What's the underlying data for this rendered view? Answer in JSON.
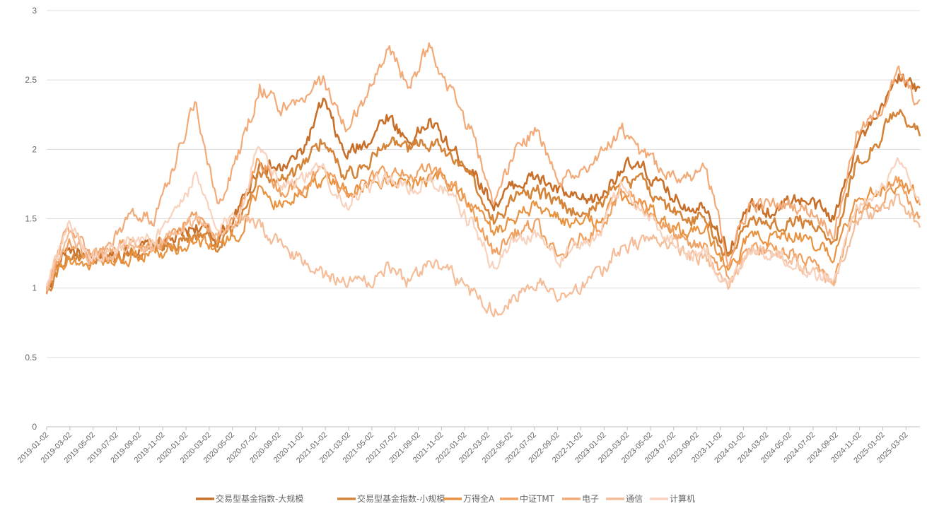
{
  "chart_data": {
    "type": "line",
    "title": "",
    "xlabel": "",
    "ylabel": "",
    "ylim": [
      0,
      3
    ],
    "yticks": [
      "0",
      "0.5",
      "1",
      "1.5",
      "2",
      "2.5",
      "3"
    ],
    "xticks": [
      "2019-01-02",
      "2019-03-02",
      "2019-05-02",
      "2019-07-02",
      "2019-09-02",
      "2019-11-02",
      "2020-01-02",
      "2020-03-02",
      "2020-05-02",
      "2020-07-02",
      "2020-09-02",
      "2020-11-02",
      "2021-01-02",
      "2021-03-02",
      "2021-05-02",
      "2021-07-02",
      "2021-09-02",
      "2021-11-02",
      "2022-01-02",
      "2022-03-02",
      "2022-05-02",
      "2022-07-02",
      "2022-09-02",
      "2022-11-02",
      "2023-01-02",
      "2023-03-02",
      "2023-05-02",
      "2023-07-02",
      "2023-09-02",
      "2023-11-02",
      "2024-01-02",
      "2024-03-02",
      "2024-05-02",
      "2024-07-02",
      "2024-09-02",
      "2024-11-02",
      "2025-01-02",
      "2025-03-02"
    ],
    "grid": true,
    "legend_position": "bottom",
    "series": [
      {
        "name": "交易型基金指数-大规模",
        "color": "#c8702a",
        "values": [
          1.0,
          1.3,
          1.2,
          1.22,
          1.28,
          1.3,
          1.35,
          1.45,
          1.35,
          1.55,
          1.9,
          1.85,
          1.98,
          2.35,
          1.95,
          2.05,
          2.25,
          2.05,
          2.2,
          2.0,
          1.85,
          1.6,
          1.75,
          1.8,
          1.7,
          1.62,
          1.65,
          1.88,
          1.85,
          1.7,
          1.6,
          1.6,
          1.25,
          1.6,
          1.55,
          1.65,
          1.6,
          1.5,
          2.05,
          2.2,
          2.55,
          2.4
        ]
      },
      {
        "name": "交易型基金指数-小规模",
        "color": "#d4853a",
        "values": [
          1.0,
          1.25,
          1.2,
          1.2,
          1.25,
          1.3,
          1.32,
          1.4,
          1.3,
          1.45,
          1.85,
          1.75,
          1.85,
          2.1,
          1.8,
          1.9,
          2.05,
          2.0,
          2.05,
          1.95,
          1.75,
          1.5,
          1.65,
          1.7,
          1.6,
          1.55,
          1.6,
          1.8,
          1.75,
          1.6,
          1.5,
          1.5,
          1.2,
          1.5,
          1.45,
          1.5,
          1.45,
          1.35,
          1.9,
          2.05,
          2.3,
          2.1
        ]
      },
      {
        "name": "万得全A",
        "color": "#e8923f",
        "values": [
          1.0,
          1.2,
          1.18,
          1.2,
          1.22,
          1.25,
          1.28,
          1.35,
          1.3,
          1.4,
          1.7,
          1.6,
          1.7,
          1.8,
          1.7,
          1.75,
          1.8,
          1.75,
          1.8,
          1.75,
          1.6,
          1.4,
          1.5,
          1.6,
          1.5,
          1.45,
          1.5,
          1.65,
          1.6,
          1.5,
          1.4,
          1.4,
          1.15,
          1.4,
          1.35,
          1.4,
          1.3,
          1.25,
          1.65,
          1.7,
          1.75,
          1.65
        ]
      },
      {
        "name": "中证TMT",
        "color": "#f0a060",
        "values": [
          1.0,
          1.35,
          1.22,
          1.25,
          1.35,
          1.3,
          1.4,
          1.5,
          1.4,
          1.5,
          1.95,
          1.7,
          1.75,
          1.85,
          1.7,
          1.75,
          1.85,
          1.8,
          1.85,
          1.75,
          1.55,
          1.25,
          1.4,
          1.45,
          1.2,
          1.35,
          1.45,
          1.7,
          1.6,
          1.45,
          1.3,
          1.3,
          1.05,
          1.3,
          1.25,
          1.25,
          1.15,
          1.1,
          1.55,
          1.6,
          1.8,
          1.5
        ]
      },
      {
        "name": "电子",
        "color": "#f2aa78",
        "values": [
          1.0,
          1.45,
          1.25,
          1.3,
          1.55,
          1.5,
          1.9,
          2.35,
          1.6,
          1.95,
          2.45,
          2.3,
          2.35,
          2.5,
          2.15,
          2.35,
          2.75,
          2.45,
          2.75,
          2.4,
          2.1,
          1.6,
          2.0,
          2.15,
          1.75,
          1.85,
          1.95,
          2.15,
          1.95,
          1.85,
          1.8,
          1.85,
          1.2,
          1.6,
          1.6,
          1.6,
          1.55,
          1.4,
          2.1,
          2.25,
          2.55,
          2.3
        ]
      },
      {
        "name": "通信",
        "color": "#f5bc98",
        "values": [
          1.0,
          1.4,
          1.2,
          1.25,
          1.3,
          1.28,
          1.4,
          1.5,
          1.35,
          1.5,
          1.45,
          1.3,
          1.2,
          1.1,
          1.05,
          1.05,
          1.15,
          1.05,
          1.2,
          1.1,
          0.95,
          0.85,
          0.95,
          1.05,
          0.95,
          1.0,
          1.1,
          1.3,
          1.35,
          1.35,
          1.25,
          1.2,
          1.0,
          1.3,
          1.25,
          1.2,
          1.1,
          1.05,
          1.5,
          1.55,
          1.65,
          1.45
        ]
      },
      {
        "name": "计算机",
        "color": "#f8d2bd",
        "values": [
          1.0,
          1.45,
          1.25,
          1.25,
          1.35,
          1.35,
          1.55,
          1.8,
          1.4,
          1.55,
          2.05,
          1.75,
          1.8,
          1.85,
          1.6,
          1.7,
          1.8,
          1.7,
          1.8,
          1.65,
          1.45,
          1.15,
          1.35,
          1.4,
          1.2,
          1.3,
          1.4,
          1.75,
          1.55,
          1.4,
          1.25,
          1.25,
          1.0,
          1.3,
          1.25,
          1.2,
          1.1,
          1.05,
          1.6,
          1.65,
          1.9,
          1.6
        ]
      }
    ]
  }
}
